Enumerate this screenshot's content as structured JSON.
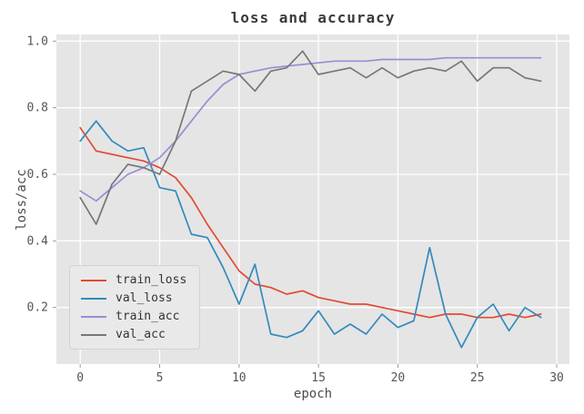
{
  "chart_data": {
    "type": "line",
    "title": "loss and accuracy",
    "xlabel": "epoch",
    "ylabel": "loss/acc",
    "xlim": [
      -1.5,
      30.8
    ],
    "ylim": [
      0.03,
      1.02
    ],
    "xticks": [
      0,
      5,
      10,
      15,
      20,
      25,
      30
    ],
    "yticks": [
      0.2,
      0.4,
      0.6,
      0.8,
      1.0
    ],
    "grid": true,
    "legend_position": "lower left",
    "plot_bg": "#e5e5e5",
    "grid_color": "#ffffff",
    "tick_color": "#555555",
    "x": [
      0,
      1,
      2,
      3,
      4,
      5,
      6,
      7,
      8,
      9,
      10,
      11,
      12,
      13,
      14,
      15,
      16,
      17,
      18,
      19,
      20,
      21,
      22,
      23,
      24,
      25,
      26,
      27,
      28,
      29
    ],
    "series": [
      {
        "name": "train_loss",
        "color": "#e24a33",
        "values": [
          0.74,
          0.67,
          0.66,
          0.65,
          0.64,
          0.62,
          0.59,
          0.53,
          0.45,
          0.38,
          0.31,
          0.27,
          0.26,
          0.24,
          0.25,
          0.23,
          0.22,
          0.21,
          0.21,
          0.2,
          0.19,
          0.18,
          0.17,
          0.18,
          0.18,
          0.17,
          0.17,
          0.18,
          0.17,
          0.18
        ]
      },
      {
        "name": "val_loss",
        "color": "#348abd",
        "values": [
          0.7,
          0.76,
          0.7,
          0.67,
          0.68,
          0.56,
          0.55,
          0.42,
          0.41,
          0.32,
          0.21,
          0.33,
          0.12,
          0.11,
          0.13,
          0.19,
          0.12,
          0.15,
          0.12,
          0.18,
          0.14,
          0.16,
          0.38,
          0.18,
          0.08,
          0.17,
          0.21,
          0.13,
          0.2,
          0.17
        ]
      },
      {
        "name": "train_acc",
        "color": "#988ed5",
        "values": [
          0.55,
          0.52,
          0.56,
          0.6,
          0.62,
          0.65,
          0.7,
          0.76,
          0.82,
          0.87,
          0.9,
          0.91,
          0.92,
          0.925,
          0.93,
          0.935,
          0.94,
          0.94,
          0.94,
          0.945,
          0.945,
          0.945,
          0.945,
          0.95,
          0.95,
          0.95,
          0.95,
          0.95,
          0.95,
          0.95
        ]
      },
      {
        "name": "val_acc",
        "color": "#777777",
        "values": [
          0.53,
          0.45,
          0.57,
          0.63,
          0.62,
          0.6,
          0.7,
          0.85,
          0.88,
          0.91,
          0.9,
          0.85,
          0.91,
          0.92,
          0.97,
          0.9,
          0.91,
          0.92,
          0.89,
          0.92,
          0.89,
          0.91,
          0.92,
          0.91,
          0.94,
          0.88,
          0.92,
          0.92,
          0.89,
          0.88
        ]
      }
    ]
  }
}
